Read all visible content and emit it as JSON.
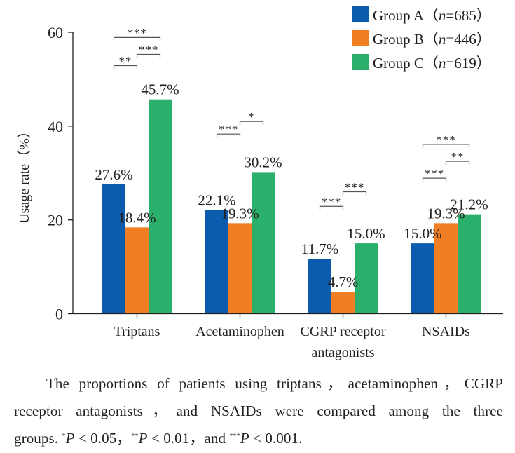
{
  "chart_data": {
    "type": "bar",
    "title": "",
    "xlabel": "",
    "ylabel": "Usage rate（%）",
    "ylim": [
      0,
      60
    ],
    "yticks": [
      0,
      20,
      40,
      60
    ],
    "grid": false,
    "legend_position": "top-right",
    "categories": [
      {
        "line1": "Triptans",
        "line2": ""
      },
      {
        "line1": "Acetaminophen",
        "line2": ""
      },
      {
        "line1": "CGRP receptor",
        "line2": "antagonists"
      },
      {
        "line1": "NSAIDs",
        "line2": ""
      }
    ],
    "series": [
      {
        "name": "Group A",
        "n_label": "n",
        "n": "=685",
        "color": "#0b5cad",
        "values": [
          27.6,
          22.1,
          11.7,
          15.0
        ],
        "labels": [
          "27.6%",
          "22.1%",
          "11.7%",
          "15.0%"
        ]
      },
      {
        "name": "Group B",
        "n_label": "n",
        "n": "=446",
        "color": "#f07f23",
        "values": [
          18.4,
          19.3,
          4.7,
          19.3
        ],
        "labels": [
          "18.4%",
          "19.3%",
          "4.7%",
          "19.3%"
        ]
      },
      {
        "name": "Group C",
        "n_label": "n",
        "n": "=619",
        "color": "#2bb06c",
        "values": [
          45.7,
          30.2,
          15.0,
          21.2
        ],
        "labels": [
          "45.7%",
          "30.2%",
          "15.0%",
          "21.2%"
        ]
      }
    ],
    "significance": [
      {
        "category": 0,
        "from": 0,
        "to": 2,
        "level": 58.9,
        "stars": "***"
      },
      {
        "category": 0,
        "from": 1,
        "to": 2,
        "level": 55.3,
        "stars": "***"
      },
      {
        "category": 0,
        "from": 0,
        "to": 1,
        "level": 52.9,
        "stars": "**"
      },
      {
        "category": 1,
        "from": 1,
        "to": 2,
        "level": 41.0,
        "stars": "*"
      },
      {
        "category": 1,
        "from": 0,
        "to": 1,
        "level": 38.3,
        "stars": "***"
      },
      {
        "category": 2,
        "from": 1,
        "to": 2,
        "level": 26.0,
        "stars": "***"
      },
      {
        "category": 2,
        "from": 0,
        "to": 1,
        "level": 22.9,
        "stars": "***"
      },
      {
        "category": 3,
        "from": 0,
        "to": 2,
        "level": 36.1,
        "stars": "***"
      },
      {
        "category": 3,
        "from": 1,
        "to": 2,
        "level": 32.5,
        "stars": "**"
      },
      {
        "category": 3,
        "from": 0,
        "to": 1,
        "level": 28.9,
        "stars": "***"
      }
    ]
  },
  "caption": {
    "line1": "The proportions of patients using triptans，acetaminophen，CGRP",
    "line2": "receptor antagonists，and NSAIDs were compared among the three",
    "line3_prefix": "groups. ",
    "p1_sup": "*",
    "p1_var": "P",
    "p1_rest": " < 0.05，",
    "p2_sup": "**",
    "p2_var": "P",
    "p2_rest": " < 0.01，and ",
    "p3_sup": "***",
    "p3_var": "P",
    "p3_rest": " < 0.001."
  }
}
